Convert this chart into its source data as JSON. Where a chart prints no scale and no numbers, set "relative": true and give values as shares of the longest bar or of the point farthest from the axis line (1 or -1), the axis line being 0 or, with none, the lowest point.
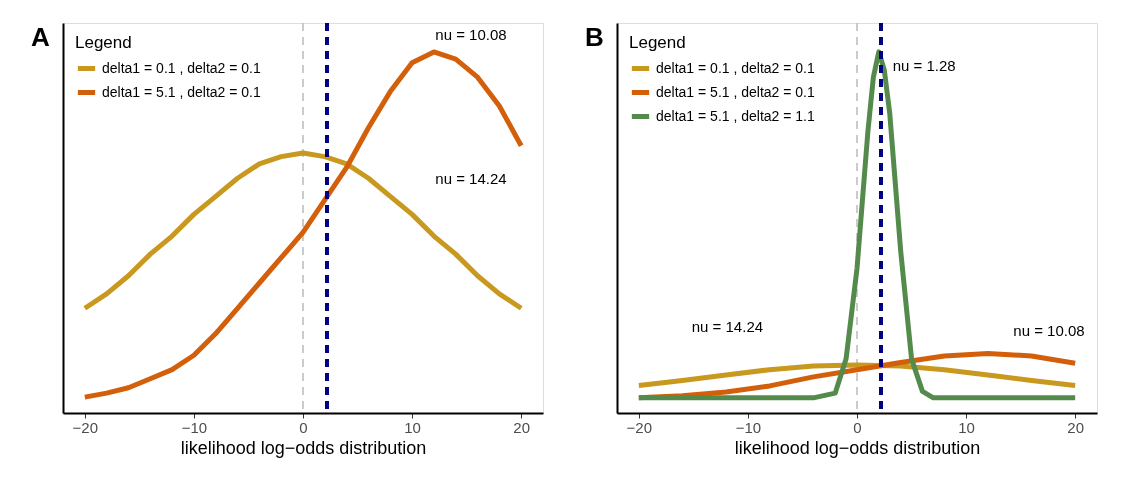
{
  "chart_data": [
    {
      "type": "line",
      "title": "A",
      "xlabel": "likelihood log−odds distribution",
      "legend_title": "Legend",
      "legend": "top left",
      "relative": true,
      "tick_labels": "x",
      "grid": false,
      "line_style": "solid",
      "marker": "none",
      "xlim": [
        -22,
        22
      ],
      "xticks": [
        -20,
        -10,
        0,
        10,
        20
      ],
      "series": [
        {
          "name": "delta1 = 0.1 , delta2 = 0.1",
          "color": "#c9991f",
          "x": [
            -20,
            -18,
            -16,
            -14,
            -12,
            -10,
            -8,
            -6,
            -4,
            -2,
            0,
            2,
            4,
            6,
            8,
            10,
            12,
            14,
            16,
            18,
            20
          ],
          "values": [
            0.29,
            0.33,
            0.38,
            0.44,
            0.49,
            0.55,
            0.6,
            0.65,
            0.69,
            0.71,
            0.72,
            0.71,
            0.69,
            0.65,
            0.6,
            0.55,
            0.49,
            0.44,
            0.38,
            0.33,
            0.29
          ]
        },
        {
          "name": "delta1 = 5.1 , delta2 = 0.1",
          "color": "#d35f0b",
          "x": [
            -20,
            -18,
            -16,
            -14,
            -12,
            -10,
            -8,
            -6,
            -4,
            -2,
            0,
            2,
            4,
            6,
            8,
            10,
            12,
            14,
            16,
            18,
            20
          ],
          "values": [
            0.044,
            0.055,
            0.07,
            0.095,
            0.12,
            0.16,
            0.22,
            0.29,
            0.36,
            0.43,
            0.5,
            0.59,
            0.68,
            0.79,
            0.89,
            0.97,
            1.0,
            0.98,
            0.93,
            0.85,
            0.74
          ]
        }
      ],
      "ref_lines": [
        {
          "axis": "x",
          "value": 0,
          "color": "#bbbbbb",
          "line_style": "dashed"
        },
        {
          "axis": "x",
          "value": 2.2,
          "color": "#000080",
          "line_style": "dashed"
        }
      ],
      "annotations": [
        "nu = 10.08",
        "nu = 14.24"
      ]
    },
    {
      "type": "line",
      "title": "B",
      "xlabel": "likelihood log−odds distribution",
      "legend_title": "Legend",
      "legend": "top left",
      "relative": true,
      "tick_labels": "x",
      "grid": false,
      "line_style": "solid",
      "marker": "none",
      "xlim": [
        -22,
        22
      ],
      "xticks": [
        -20,
        -10,
        0,
        10,
        20
      ],
      "series": [
        {
          "name": "delta1 = 0.1 , delta2 = 0.1",
          "color": "#c9991f",
          "x": [
            -20,
            -16,
            -12,
            -8,
            -4,
            0,
            4,
            8,
            12,
            16,
            20
          ],
          "values": [
            0.076,
            0.09,
            0.105,
            0.12,
            0.13,
            0.133,
            0.13,
            0.12,
            0.105,
            0.09,
            0.076
          ]
        },
        {
          "name": "delta1 = 5.1 , delta2 = 0.1",
          "color": "#d35f0b",
          "x": [
            -20,
            -16,
            -12,
            -8,
            -4,
            0,
            4,
            8,
            12,
            16,
            20
          ],
          "values": [
            0.042,
            0.048,
            0.058,
            0.075,
            0.1,
            0.12,
            0.14,
            0.158,
            0.165,
            0.158,
            0.138
          ]
        },
        {
          "name": "delta1 = 5.1 , delta2 = 1.1",
          "color": "#548b4c",
          "x": [
            -20,
            -4,
            -2,
            -1,
            0,
            1,
            1.5,
            2,
            2.5,
            3,
            4,
            5,
            6,
            7,
            20
          ],
          "values": [
            0.042,
            0.042,
            0.055,
            0.15,
            0.4,
            0.78,
            0.93,
            1.0,
            0.95,
            0.83,
            0.45,
            0.15,
            0.06,
            0.042,
            0.042
          ]
        }
      ],
      "ref_lines": [
        {
          "axis": "x",
          "value": 0,
          "color": "#bbbbbb",
          "line_style": "dashed"
        },
        {
          "axis": "x",
          "value": 2.2,
          "color": "#000080",
          "line_style": "dashed"
        }
      ],
      "annotations": [
        "nu = 1.28",
        "nu = 14.24",
        "nu = 10.08"
      ]
    }
  ]
}
